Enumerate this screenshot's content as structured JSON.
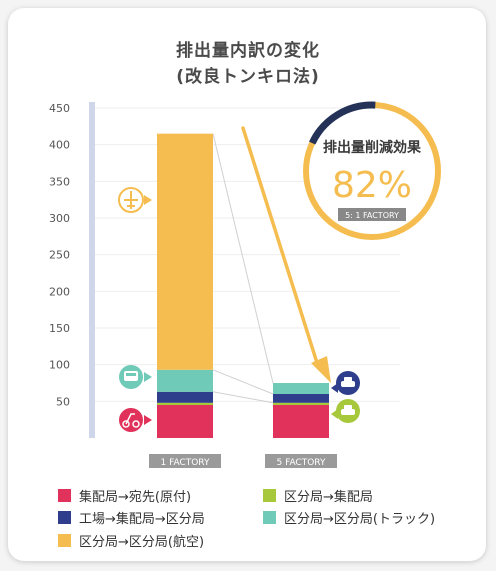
{
  "title": {
    "line1": "排出量内訳の変化",
    "line2": "(改良トンキロ法)"
  },
  "badge": {
    "label": "排出量削減効果",
    "value": "82%",
    "caption": "5: 1 FACTORY",
    "fraction": 0.82
  },
  "colors": {
    "red": "#e0325a",
    "lime": "#a6c83a",
    "navy": "#2e3e8c",
    "teal": "#6fcab8",
    "yellow": "#f5bd4f",
    "ring_dark": "#243258",
    "ring_light": "#f5bd4f"
  },
  "chart_data": {
    "type": "bar",
    "stacked": true,
    "ylim": [
      0,
      450
    ],
    "yticks": [
      50,
      100,
      150,
      200,
      250,
      300,
      350,
      400,
      450
    ],
    "grid": true,
    "categories": [
      "1 FACTORY",
      "5 FACTORY"
    ],
    "series": [
      {
        "name": "集配局→宛先(原付)",
        "color": "red",
        "values": [
          45,
          45
        ]
      },
      {
        "name": "区分局→集配局",
        "color": "lime",
        "values": [
          3,
          3
        ]
      },
      {
        "name": "工場→集配局→区分局",
        "color": "navy",
        "values": [
          15,
          12
        ]
      },
      {
        "name": "区分局→区分局(トラック)",
        "color": "teal",
        "values": [
          30,
          15
        ]
      },
      {
        "name": "区分局→区分局(航空)",
        "color": "yellow",
        "values": [
          322,
          0
        ]
      }
    ]
  },
  "legend": [
    {
      "label": "集配局→宛先(原付)",
      "color": "red"
    },
    {
      "label": "区分局→集配局",
      "color": "lime"
    },
    {
      "label": "工場→集配局→区分局",
      "color": "navy"
    },
    {
      "label": "区分局→区分局(トラック)",
      "color": "teal"
    },
    {
      "label": "区分局→区分局(航空)",
      "color": "yellow"
    }
  ],
  "icons": [
    "airplane-icon",
    "bus-icon",
    "scooter-icon",
    "car-icon",
    "car-icon"
  ]
}
